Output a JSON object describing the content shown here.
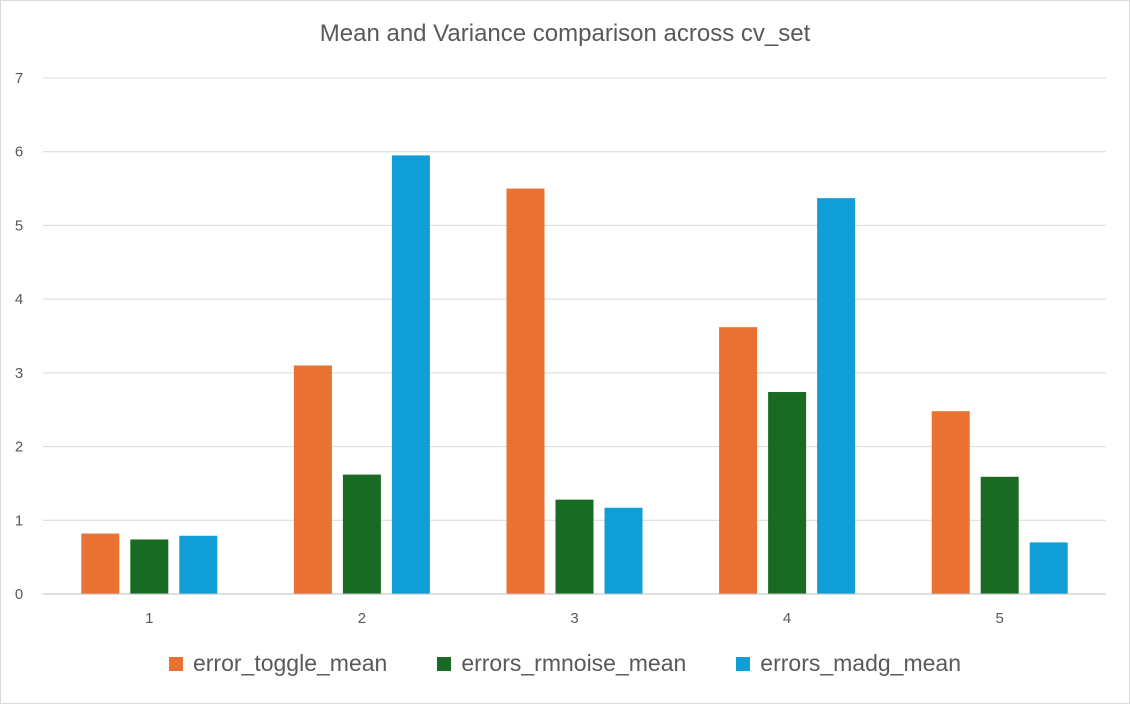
{
  "chart_data": {
    "type": "bar",
    "title": "Mean and Variance comparison across cv_set",
    "xlabel": "",
    "ylabel": "",
    "categories": [
      "1",
      "2",
      "3",
      "4",
      "5"
    ],
    "ylim": [
      0,
      7
    ],
    "yticks": [
      "0",
      "1",
      "2",
      "3",
      "4",
      "5",
      "6",
      "7"
    ],
    "grid": true,
    "legend_position": "bottom",
    "series": [
      {
        "name": "error_toggle_mean",
        "color": "#E97132",
        "values": [
          0.82,
          3.1,
          5.5,
          3.62,
          2.48
        ]
      },
      {
        "name": "errors_rmnoise_mean",
        "color": "#196B24",
        "values": [
          0.74,
          1.62,
          1.28,
          2.74,
          1.59
        ]
      },
      {
        "name": "errors_madg_mean",
        "color": "#0F9ED5",
        "values": [
          0.79,
          5.95,
          1.17,
          5.37,
          0.7
        ]
      }
    ]
  }
}
